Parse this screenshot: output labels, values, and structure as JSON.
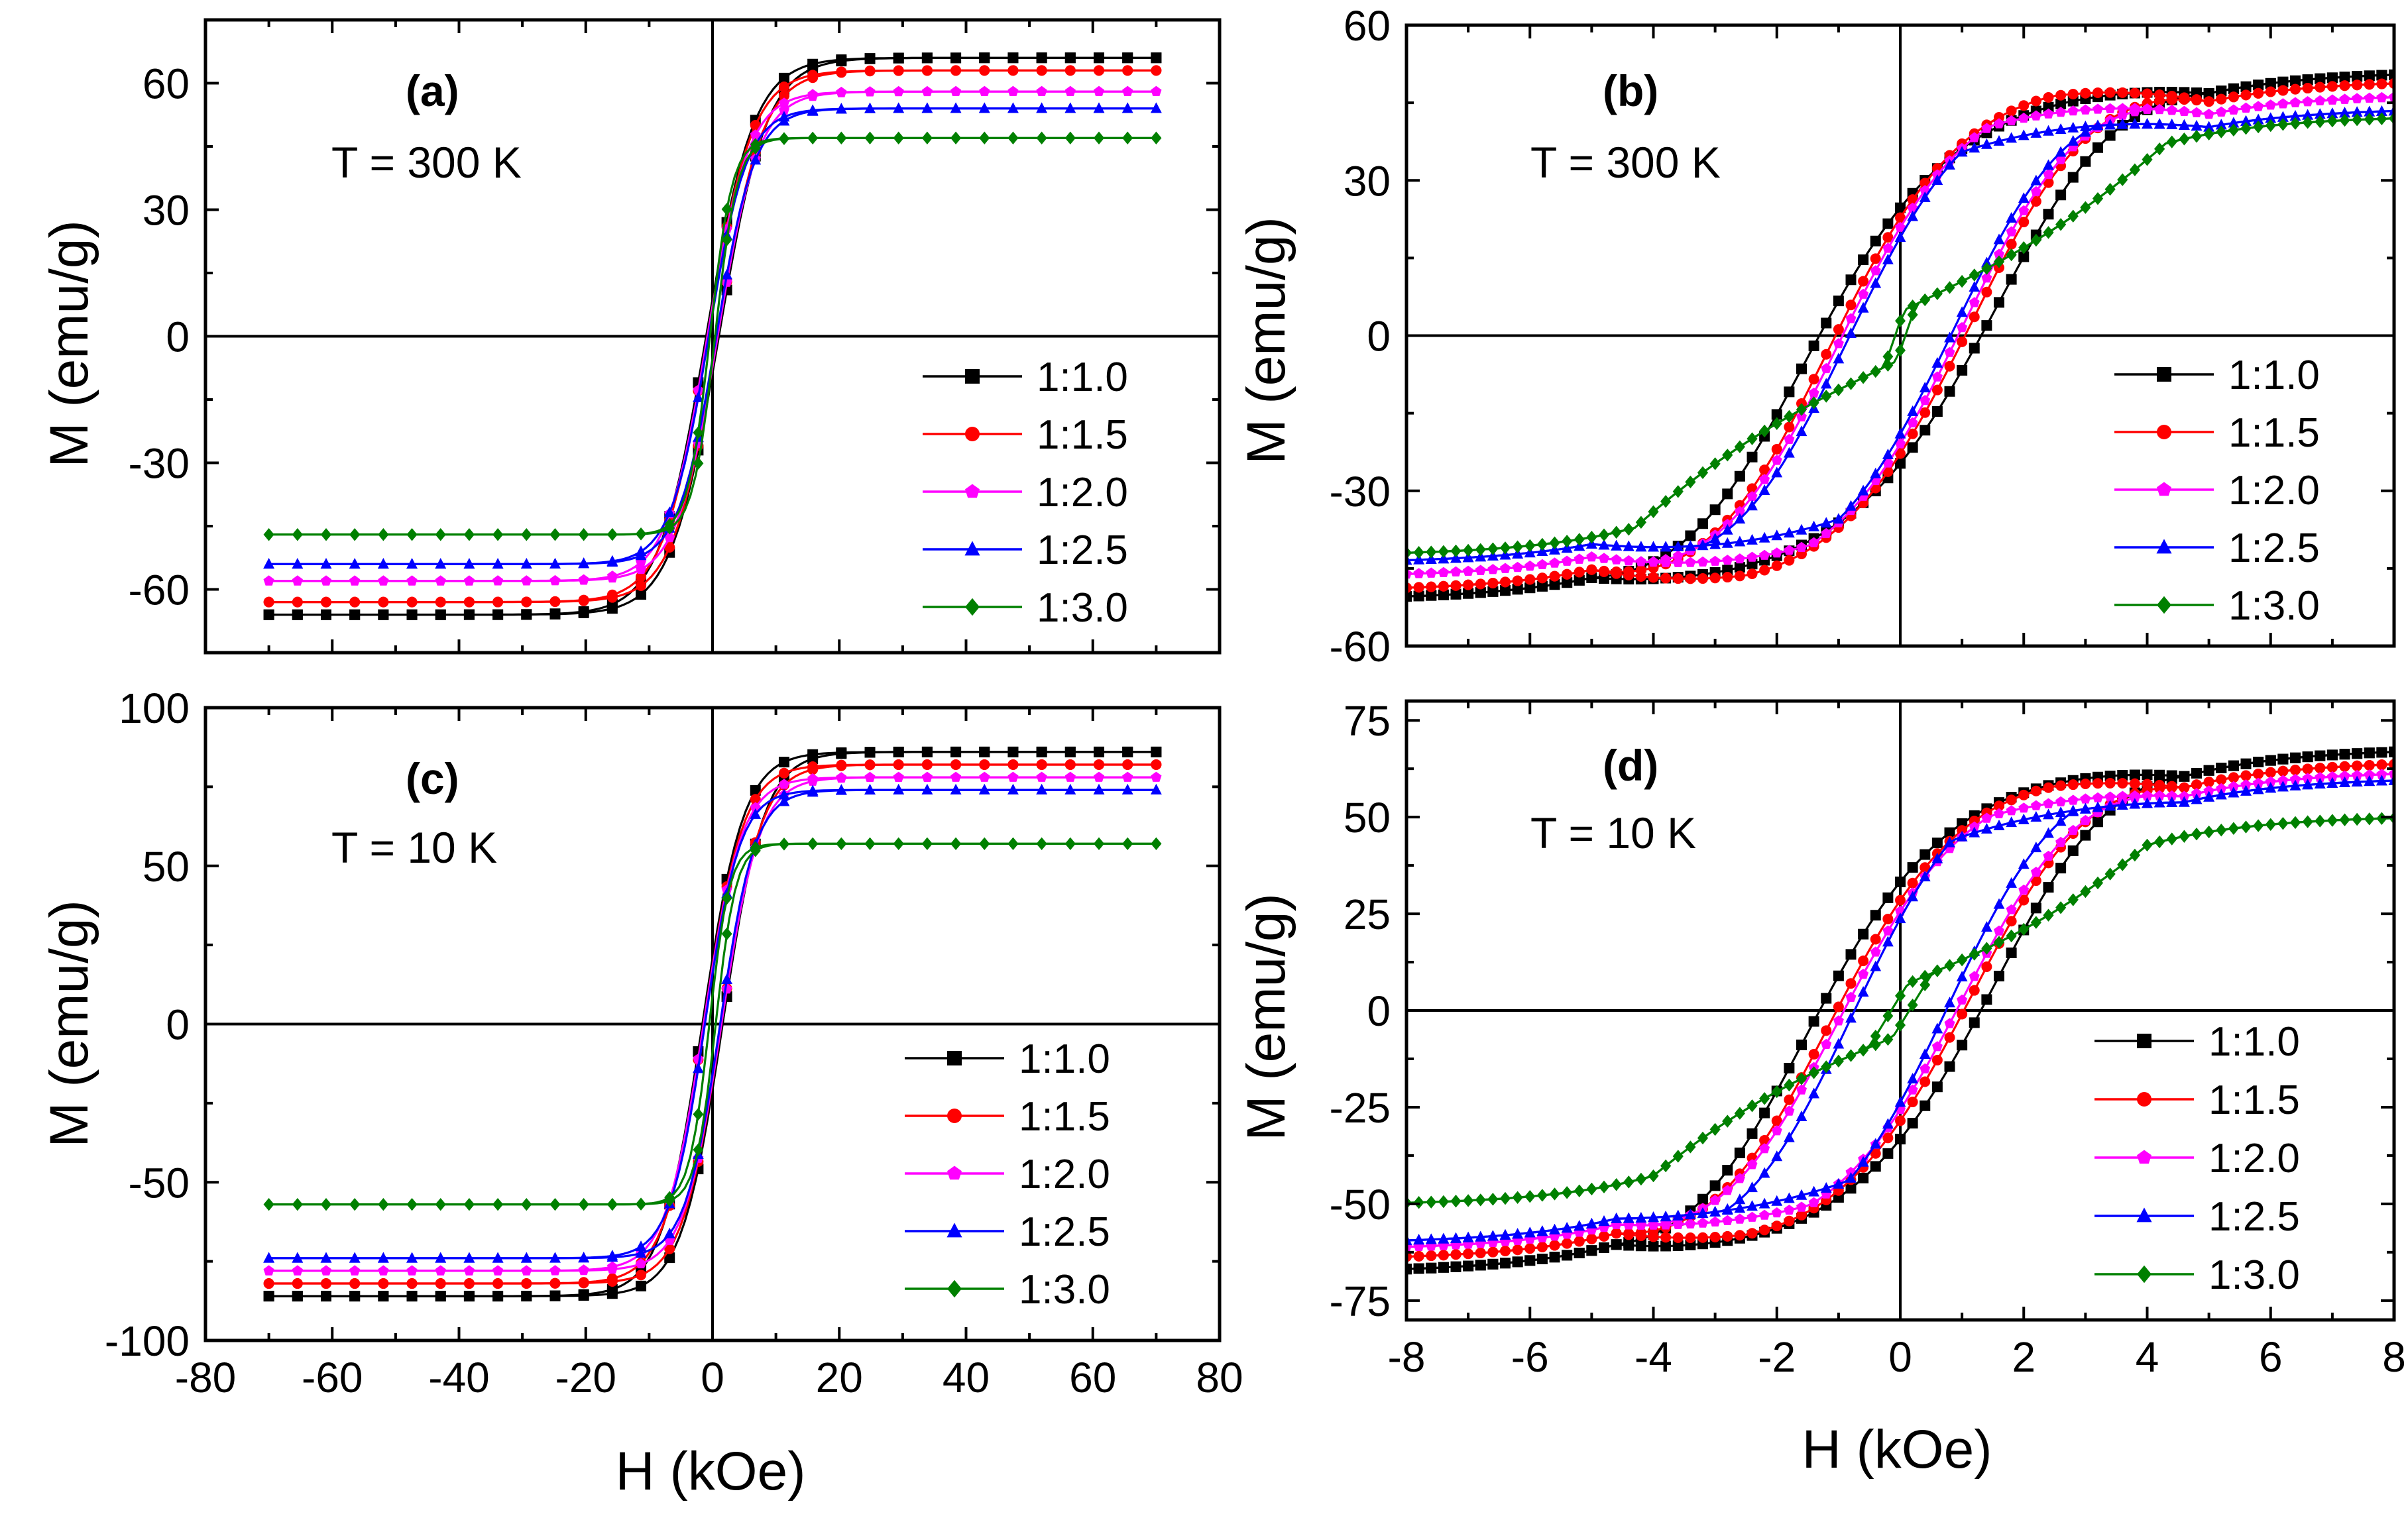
{
  "chart_data": [
    {
      "panel": "(a)",
      "subtitle": "T = 300 K",
      "type": "line",
      "xlabel": "H (kOe)",
      "ylabel": "M (emu/g)",
      "xlim": [
        -80,
        80
      ],
      "ylim": [
        -75,
        75
      ],
      "xticks": [
        -80,
        -60,
        -40,
        -20,
        0,
        20,
        40,
        60,
        80
      ],
      "yticks": [
        -60,
        -30,
        0,
        30,
        60
      ],
      "show_x_ticklabels": false,
      "show_x_label": false,
      "loop": "narrow",
      "h_range": [
        -70,
        70
      ],
      "n_markers": 31,
      "legend_position": "bottom-right",
      "series": [
        {
          "name": "1:1.0",
          "color": "#000000",
          "marker": "square",
          "saturation": 66,
          "hc": 1.0,
          "k": 7.5
        },
        {
          "name": "1:1.5",
          "color": "#ff0000",
          "marker": "circle",
          "saturation": 63,
          "hc": 0.8,
          "k": 7.0
        },
        {
          "name": "1:2.0",
          "color": "#ff00ff",
          "marker": "pentagon",
          "saturation": 58,
          "hc": 0.8,
          "k": 6.5
        },
        {
          "name": "1:2.5",
          "color": "#0000ff",
          "marker": "triangle",
          "saturation": 54,
          "hc": 0.6,
          "k": 6.0
        },
        {
          "name": "1:3.0",
          "color": "#008000",
          "marker": "diamond",
          "saturation": 47,
          "hc": 0.4,
          "k": 3.5
        }
      ]
    },
    {
      "panel": "(b)",
      "subtitle": "T = 300 K",
      "type": "line",
      "xlabel": "H (kOe)",
      "ylabel": "M (emu/g)",
      "xlim": [
        -8,
        8
      ],
      "ylim": [
        -60,
        60
      ],
      "xticks": [
        -8,
        -6,
        -4,
        -2,
        0,
        2,
        4,
        6,
        8
      ],
      "yticks": [
        -60,
        -30,
        0,
        30,
        60
      ],
      "show_x_ticklabels": false,
      "show_x_label": false,
      "loop": "wide",
      "h_range": [
        -8,
        8
      ],
      "n_markers": 80,
      "legend_position": "bottom-right",
      "series": [
        {
          "name": "1:1.0",
          "color": "#000000",
          "marker": "square",
          "saturation": 55,
          "hc": 2.0,
          "rem": 26,
          "closure": 5.0
        },
        {
          "name": "1:1.5",
          "color": "#ff0000",
          "marker": "circle",
          "saturation": 53,
          "hc": 1.5,
          "rem": 24,
          "closure": 5.0
        },
        {
          "name": "1:2.0",
          "color": "#ff00ff",
          "marker": "pentagon",
          "saturation": 50,
          "hc": 1.3,
          "rem": 22,
          "closure": 5.0
        },
        {
          "name": "1:2.5",
          "color": "#0000ff",
          "marker": "triangle",
          "saturation": 47,
          "hc": 1.1,
          "rem": 20,
          "closure": 5.0
        },
        {
          "name": "1:3.0",
          "color": "#008000",
          "marker": "diamond",
          "saturation": 43,
          "hc": 0.1,
          "rem": 3,
          "closure": 4.3
        }
      ]
    },
    {
      "panel": "(c)",
      "subtitle": "T = 10 K",
      "type": "line",
      "xlabel": "H (kOe)",
      "ylabel": "M (emu/g)",
      "xlim": [
        -80,
        80
      ],
      "ylim": [
        -100,
        100
      ],
      "xticks": [
        -80,
        -60,
        -40,
        -20,
        0,
        20,
        40,
        60,
        80
      ],
      "yticks": [
        -100,
        -50,
        0,
        50,
        100
      ],
      "show_x_ticklabels": true,
      "show_x_label": true,
      "loop": "narrow",
      "h_range": [
        -70,
        70
      ],
      "n_markers": 31,
      "legend_position": "bottom-right",
      "series": [
        {
          "name": "1:1.0",
          "color": "#000000",
          "marker": "square",
          "saturation": 86,
          "hc": 1.6,
          "k": 6.5
        },
        {
          "name": "1:1.5",
          "color": "#ff0000",
          "marker": "circle",
          "saturation": 82,
          "hc": 1.4,
          "k": 6.2
        },
        {
          "name": "1:2.0",
          "color": "#ff00ff",
          "marker": "pentagon",
          "saturation": 78,
          "hc": 1.4,
          "k": 6.0
        },
        {
          "name": "1:2.5",
          "color": "#0000ff",
          "marker": "triangle",
          "saturation": 74,
          "hc": 1.2,
          "k": 5.5
        },
        {
          "name": "1:3.0",
          "color": "#008000",
          "marker": "diamond",
          "saturation": 57,
          "hc": 0.5,
          "k": 3.2
        }
      ]
    },
    {
      "panel": "(d)",
      "subtitle": "T = 10 K",
      "type": "line",
      "xlabel": "H (kOe)",
      "ylabel": "M (emu/g)",
      "xlim": [
        -8,
        8
      ],
      "ylim": [
        -80,
        80
      ],
      "xticks": [
        -8,
        -6,
        -4,
        -2,
        0,
        2,
        4,
        6,
        8
      ],
      "yticks": [
        -75,
        -50,
        -25,
        0,
        25,
        50,
        75
      ],
      "show_x_ticklabels": true,
      "show_x_label": true,
      "loop": "wide",
      "h_range": [
        -8,
        8
      ],
      "n_markers": 80,
      "legend_position": "bottom-right",
      "series": [
        {
          "name": "1:1.0",
          "color": "#000000",
          "marker": "square",
          "saturation": 73,
          "hc": 2.0,
          "rem": 35,
          "closure": 4.6
        },
        {
          "name": "1:1.5",
          "color": "#ff0000",
          "marker": "circle",
          "saturation": 69,
          "hc": 1.5,
          "rem": 30,
          "closure": 4.6
        },
        {
          "name": "1:2.0",
          "color": "#ff00ff",
          "marker": "pentagon",
          "saturation": 66,
          "hc": 1.3,
          "rem": 27,
          "closure": 4.6
        },
        {
          "name": "1:2.5",
          "color": "#0000ff",
          "marker": "triangle",
          "saturation": 64,
          "hc": 1.0,
          "rem": 25,
          "closure": 4.6
        },
        {
          "name": "1:3.0",
          "color": "#008000",
          "marker": "diamond",
          "saturation": 51,
          "hc": 0.2,
          "rem": 4,
          "closure": 4.0
        }
      ]
    }
  ]
}
